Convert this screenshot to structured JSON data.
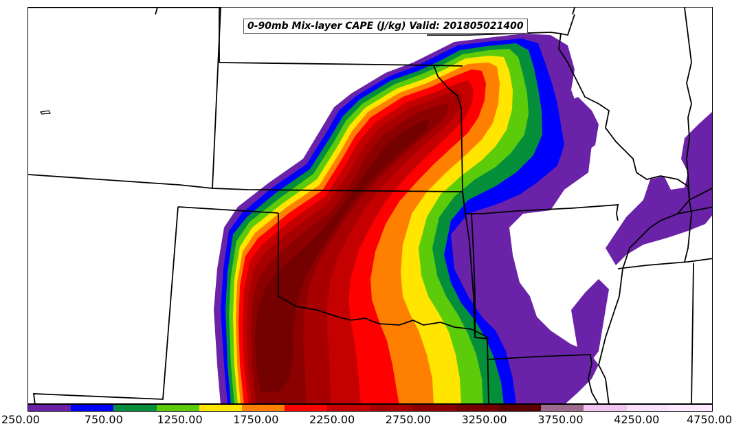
{
  "map": {
    "title": "0-90mb Mix-layer CAPE (J/kg) Valid: 201805021400",
    "field": "0-90mb Mix-layer CAPE",
    "units": "J/kg",
    "valid_time": "201805021400"
  },
  "colorbar": {
    "colors": [
      "#6a23a8",
      "#0000ff",
      "#058f3b",
      "#5ccc0a",
      "#ffe500",
      "#ff7f00",
      "#ff0000",
      "#c50000",
      "#a80000",
      "#8c0000",
      "#740000",
      "#5a0000",
      "#9e6b8c",
      "#f0c6f0",
      "#fbe2fb",
      "#ffeaff"
    ],
    "tick_labels": [
      "250.00",
      "750.00",
      "1250.00",
      "1750.00",
      "2250.00",
      "2750.00",
      "3250.00",
      "3750.00",
      "4250.00",
      "4750.00"
    ],
    "tick_values": [
      250,
      750,
      1250,
      1750,
      2250,
      2750,
      3250,
      3750,
      4250,
      4750
    ],
    "range": [
      250,
      4750
    ]
  },
  "palette": {
    "purple": "#6a23a8",
    "blue": "#0000ff",
    "dark_green": "#058f3b",
    "light_green": "#5ccc0a",
    "yellow": "#ffe500",
    "orange": "#ff7f00",
    "red": "#ff0000",
    "red_dark": "#c50000",
    "maroon1": "#a80000",
    "maroon2": "#8c0000",
    "maroon3": "#740000",
    "border": "#000000"
  }
}
